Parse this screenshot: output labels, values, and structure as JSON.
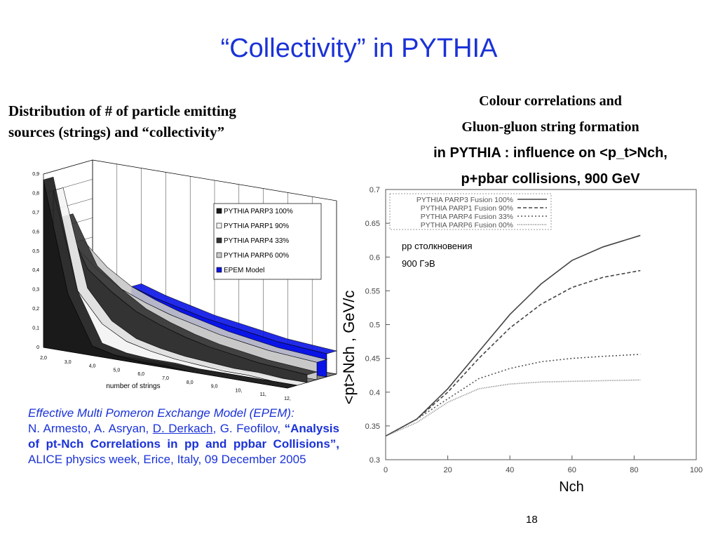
{
  "slide": {
    "title": "“Collectivity” in PYTHIA",
    "left_heading": [
      "Distribution  of  # of particle emitting",
      "sources (strings) and “collectivity”"
    ],
    "right_heading": [
      "Colour correlations and",
      "Gluon-gluon string formation",
      "in PYTHIA : influence on <p_t>Nch,",
      "p+pbar collisions, 900  GeV"
    ],
    "reference": {
      "intro": "Effective Multi Pomeron Exchange Model (EPEM):",
      "authors": "N. Armesto, A. Asryan,",
      "link": "D. Derkach",
      "authors_end": ", G. Feofilov,",
      "paper": "“Analysis of pt-Nch Correlations in pp and ppbar Collisions”,",
      "venue": "ALICE physics week, Erice, Italy, 09 December 2005"
    },
    "page_number": "18"
  },
  "chart_data": [
    {
      "type": "area3d",
      "xlabel": "number of strings",
      "categories": [
        "2,0",
        "3,0",
        "4,0",
        "5,0",
        "6,0",
        "7,0",
        "8,0",
        "9,0",
        "10,",
        "11,",
        "12,"
      ],
      "ylim": [
        0,
        0.9
      ],
      "yticks": [
        0,
        {
          "value": 0.1,
          "label": "0,1"
        },
        {
          "value": 0.2,
          "label": "0,2"
        },
        {
          "value": 0.3,
          "label": "0,3"
        },
        {
          "value": 0.4,
          "label": "0,4"
        },
        {
          "value": 0.5,
          "label": "0,5"
        },
        {
          "value": 0.6,
          "label": "0,6"
        },
        {
          "value": 0.7,
          "label": "0,7"
        },
        {
          "value": 0.8,
          "label": "0,8"
        },
        {
          "value": 0.9,
          "label": "0,9"
        }
      ],
      "series": [
        {
          "name": "PYTHIA PARP3 100%",
          "color": "#1a1a1a",
          "values": [
            0.87,
            0.3,
            0.05,
            0.02,
            0.01,
            0.01,
            0,
            0,
            0,
            0,
            0
          ]
        },
        {
          "name": "PYTHIA PARP1  90%",
          "color": "#f4f4f4",
          "values": [
            0.8,
            0.3,
            0.15,
            0.08,
            0.05,
            0.03,
            0.02,
            0.01,
            0.01,
            0,
            0
          ]
        },
        {
          "name": "PYTHIA PARP4  33%",
          "color": "#333333",
          "values": [
            0.65,
            0.4,
            0.3,
            0.22,
            0.17,
            0.13,
            0.1,
            0.08,
            0.06,
            0.05,
            0.04
          ]
        },
        {
          "name": "PYTHIA PARP6  00%",
          "color": "#c8c8c8",
          "values": [
            0.5,
            0.38,
            0.3,
            0.25,
            0.21,
            0.18,
            0.15,
            0.13,
            0.11,
            0.1,
            0.09
          ]
        },
        {
          "name": "EPEM Model",
          "color": "#0a14e6",
          "values": [
            null,
            null,
            0.3,
            0.26,
            0.23,
            0.2,
            0.18,
            0.16,
            0.14,
            0.13,
            0.12
          ]
        }
      ]
    },
    {
      "type": "line",
      "xlabel": "Nch",
      "ylabel": "<pt>Nch , GeV/c",
      "annotations": [
        "pp столкновения",
        "900 ГэВ"
      ],
      "x": [
        0,
        10,
        20,
        30,
        40,
        50,
        60,
        70,
        82
      ],
      "xlim": [
        0,
        100
      ],
      "xticks": [
        0,
        20,
        40,
        60,
        80,
        100
      ],
      "ylim": [
        0.3,
        0.7
      ],
      "yticks": [
        0.3,
        0.35,
        0.4,
        0.45,
        0.5,
        0.55,
        0.6,
        0.65,
        0.7
      ],
      "series": [
        {
          "name": "PYTHIA PARP3 Fusion 100%",
          "color": "#444444",
          "dash": "solid",
          "values": [
            0.335,
            0.36,
            0.405,
            0.46,
            0.515,
            0.56,
            0.595,
            0.615,
            0.632
          ]
        },
        {
          "name": "PYTHIA PARP1 Fusion  90%",
          "color": "#444444",
          "dash": "dashed",
          "values": [
            0.335,
            0.36,
            0.4,
            0.45,
            0.495,
            0.53,
            0.555,
            0.57,
            0.58
          ]
        },
        {
          "name": "PYTHIA PARP4 Fusion  33%",
          "color": "#555555",
          "dash": "dotted",
          "values": [
            0.335,
            0.36,
            0.39,
            0.42,
            0.435,
            0.445,
            0.45,
            0.453,
            0.456
          ]
        },
        {
          "name": "PYTHIA PARP6 Fusion  00%",
          "color": "#777777",
          "dash": "fine",
          "values": [
            0.335,
            0.355,
            0.385,
            0.405,
            0.412,
            0.415,
            0.416,
            0.417,
            0.418
          ]
        }
      ]
    }
  ]
}
